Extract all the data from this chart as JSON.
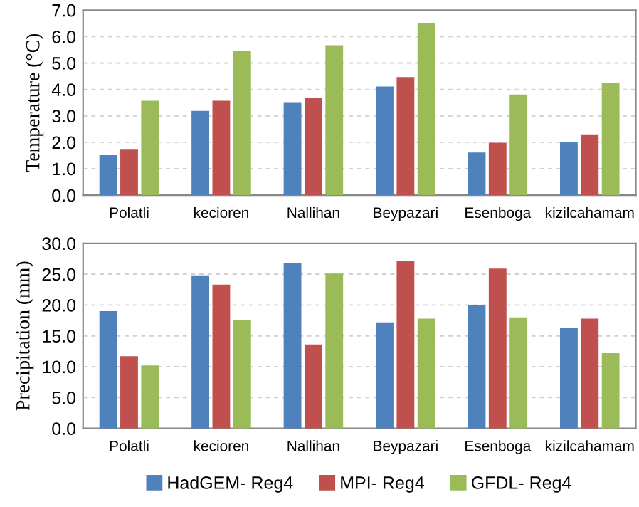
{
  "chart_data": [
    {
      "type": "bar",
      "ylabel": "Temperature (°C)",
      "categories": [
        "Polatli",
        "kecioren",
        "Nallihan",
        "Beypazari",
        "Esenboga",
        "kizilcahamam"
      ],
      "series": [
        {
          "color": "#4f81bd",
          "values": [
            1.53,
            3.19,
            3.52,
            4.11,
            1.61,
            2.01
          ]
        },
        {
          "color": "#c0504d",
          "values": [
            1.75,
            3.57,
            3.67,
            4.47,
            1.98,
            2.3
          ]
        },
        {
          "color": "#9bbb59",
          "values": [
            3.57,
            5.46,
            5.67,
            6.52,
            3.81,
            4.25
          ]
        }
      ],
      "ylim": [
        0,
        7
      ],
      "yticks": [
        {
          "value": 0,
          "label": "0.0"
        },
        {
          "value": 1,
          "label": "1.0"
        },
        {
          "value": 2,
          "label": "2.0"
        },
        {
          "value": 3,
          "label": "3.0"
        },
        {
          "value": 4,
          "label": "4.0"
        },
        {
          "value": 5,
          "label": "5.0"
        },
        {
          "value": 6,
          "label": "6.0"
        },
        {
          "value": 7,
          "label": "7.0"
        }
      ],
      "grid": "y"
    },
    {
      "type": "bar",
      "ylabel": "Precipitation (mm)",
      "categories": [
        "Polatli",
        "kecioren",
        "Nallihan",
        "Beypazari",
        "Esenboga",
        "kizilcahamam"
      ],
      "series": [
        {
          "name": "HadGEM- Reg4",
          "color": "#4f81bd",
          "values": [
            19.0,
            24.8,
            26.8,
            17.2,
            20.0,
            16.3
          ]
        },
        {
          "name": "MPI- Reg4",
          "color": "#c0504d",
          "values": [
            11.7,
            23.3,
            13.6,
            27.2,
            25.9,
            17.8
          ]
        },
        {
          "name": "GFDL- Reg4",
          "color": "#9bbb59",
          "values": [
            10.2,
            17.6,
            25.1,
            17.8,
            18.0,
            12.2
          ]
        }
      ],
      "ylim": [
        0,
        30
      ],
      "yticks": [
        {
          "value": 0,
          "label": "0.0"
        },
        {
          "value": 5,
          "label": "5.0"
        },
        {
          "value": 10,
          "label": "10.0"
        },
        {
          "value": 15,
          "label": "15.0"
        },
        {
          "value": 20,
          "label": "20.0"
        },
        {
          "value": 25,
          "label": "25.0"
        },
        {
          "value": 30,
          "label": "30.0"
        }
      ],
      "grid": "y",
      "legend": "bottom"
    }
  ]
}
